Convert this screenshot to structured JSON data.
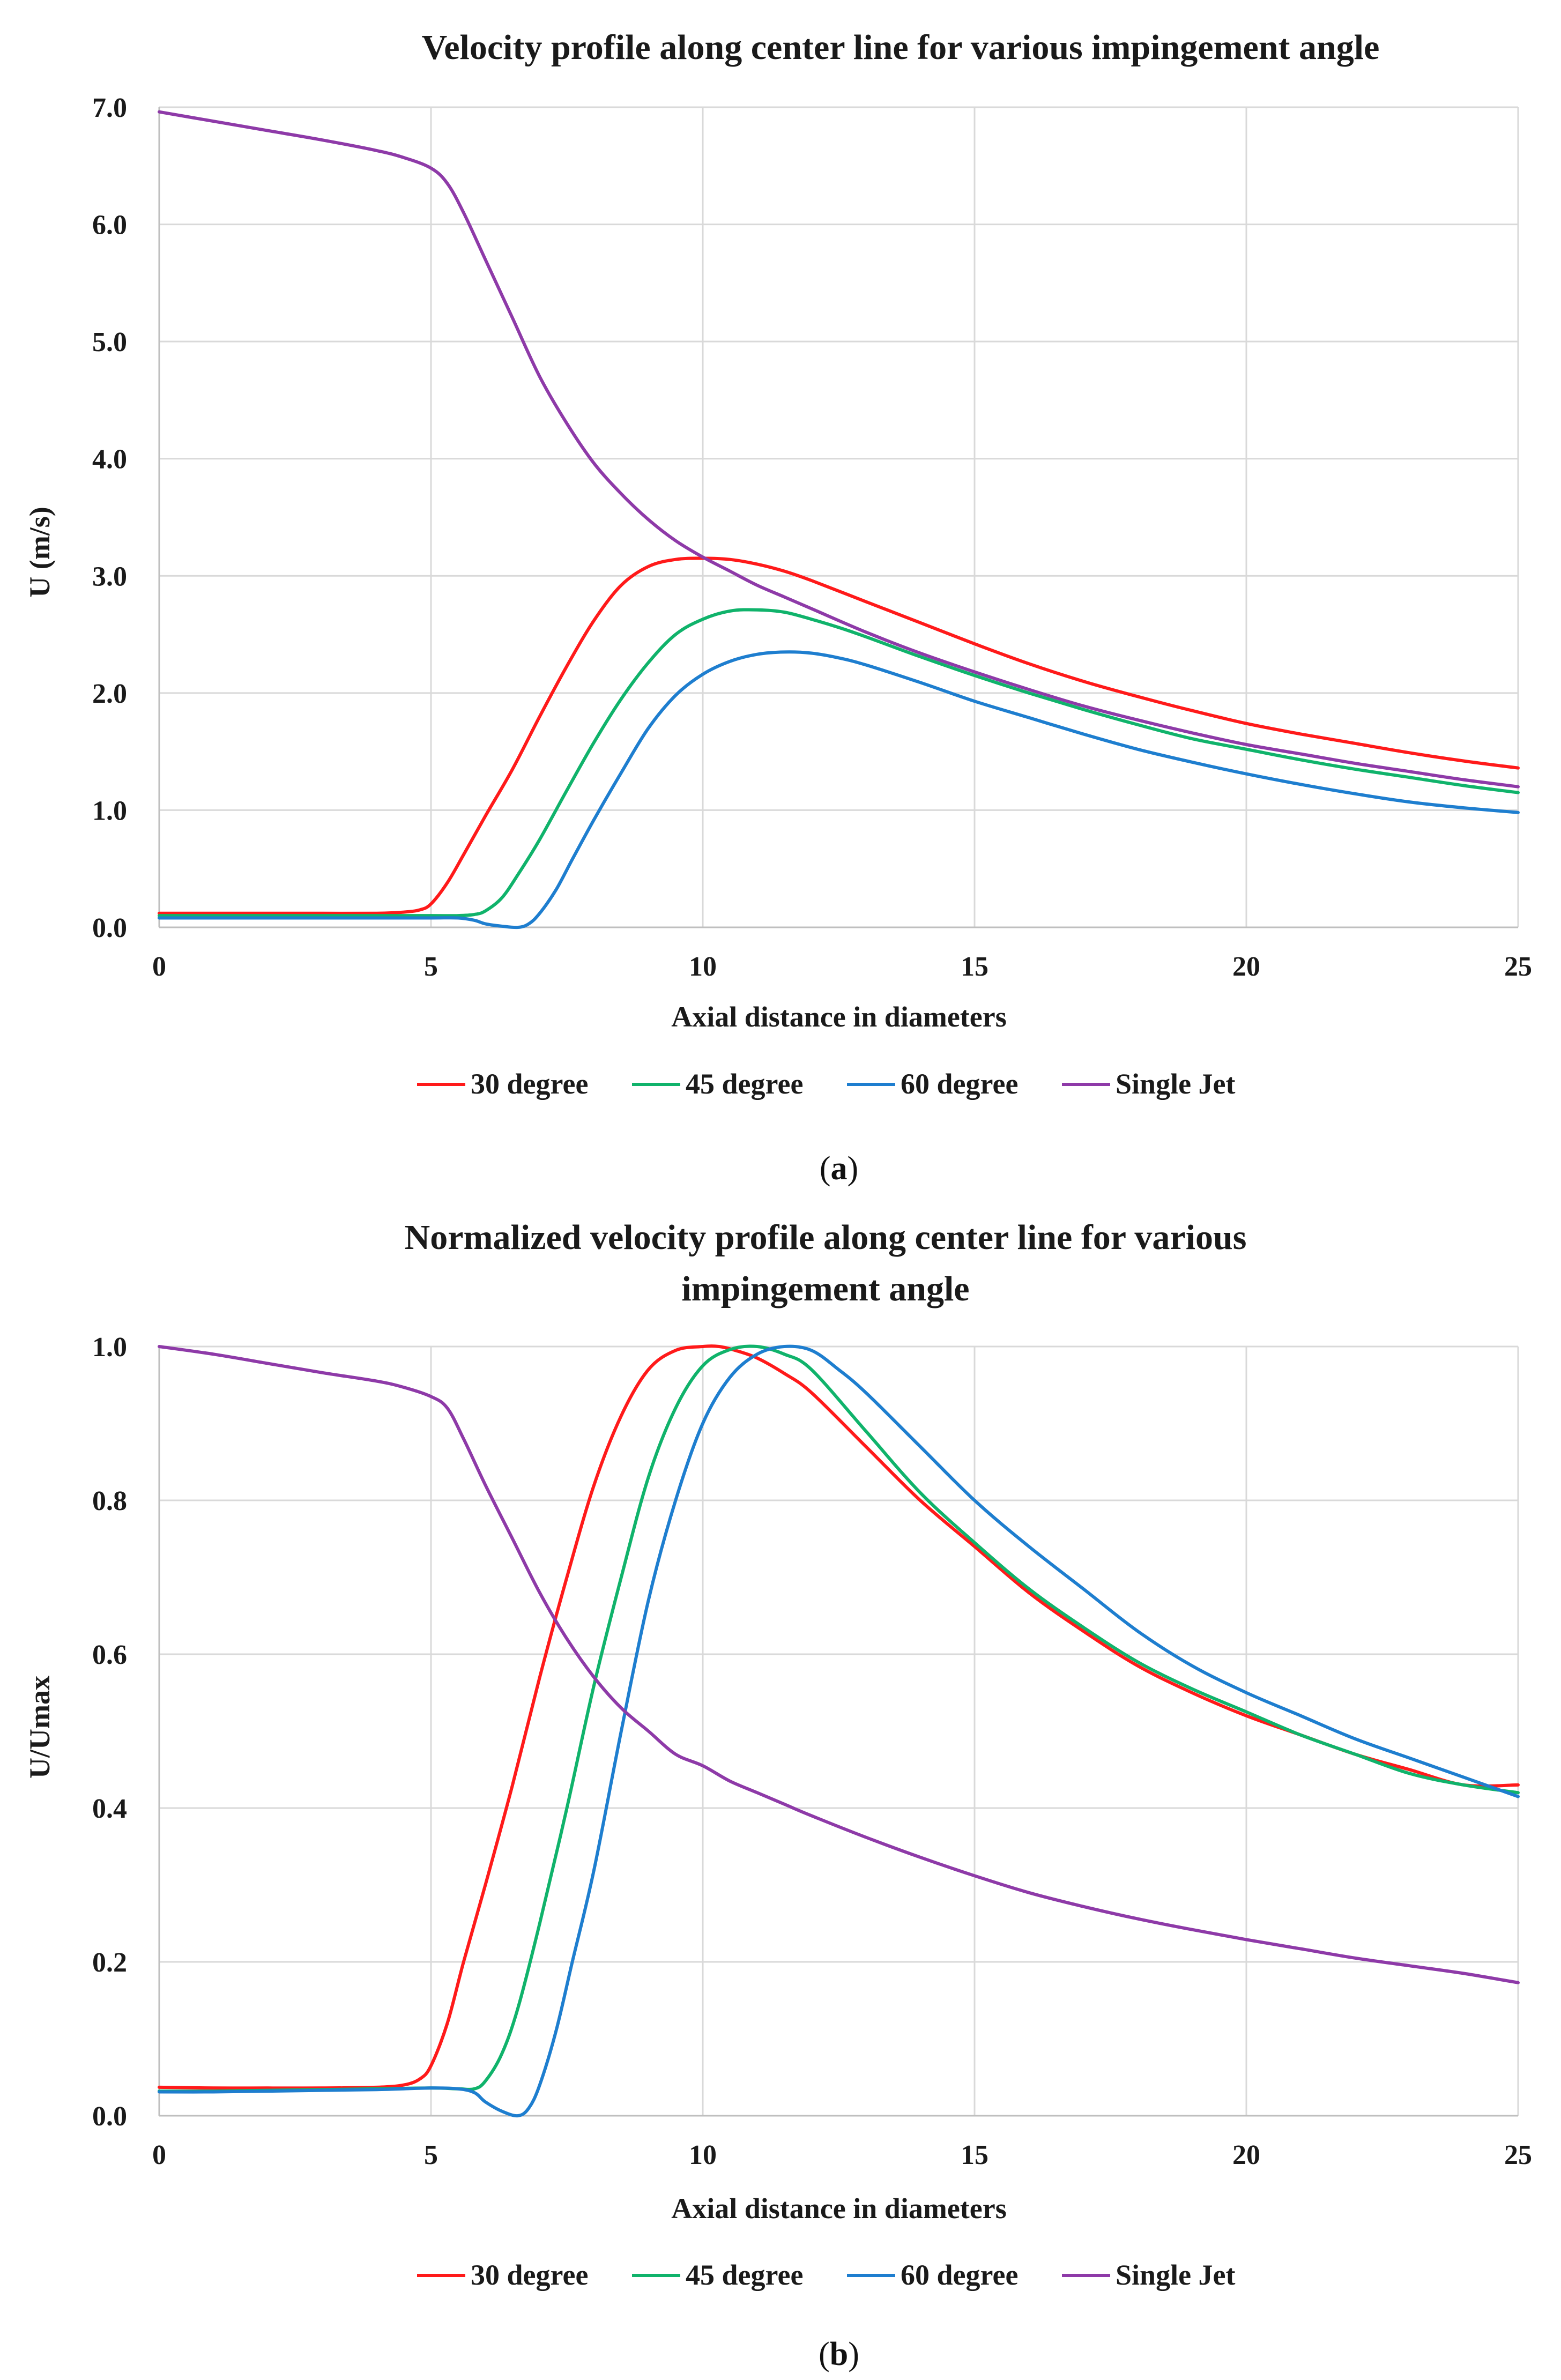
{
  "colors": {
    "s30": "#ff1a1a",
    "s45": "#10b36b",
    "s60": "#1e7ecf",
    "single": "#8e3aa8"
  },
  "chart_data": [
    {
      "type": "line",
      "title": "Velocity profile along center line for various impingement angle",
      "xlabel": "Axial distance in diameters",
      "ylabel": "U (m/s)",
      "xlim": [
        0,
        25
      ],
      "ylim": [
        0,
        7
      ],
      "xticks": [
        0,
        5,
        10,
        15,
        20,
        25
      ],
      "xtick_labels": [
        "0",
        "5",
        "10",
        "15",
        "20",
        "25"
      ],
      "yticks": [
        0,
        1,
        2,
        3,
        4,
        5,
        6,
        7
      ],
      "ytick_labels": [
        "0.0",
        "1.0",
        "2.0",
        "3.0",
        "4.0",
        "5.0",
        "6.0",
        "7.0"
      ],
      "caption": "a",
      "series": [
        {
          "name": "30 degree",
          "color_key": "s30",
          "x": [
            0,
            1,
            2,
            3,
            4,
            4.5,
            4.8,
            5,
            5.3,
            5.6,
            6,
            6.5,
            7,
            7.5,
            8,
            8.5,
            9,
            9.5,
            10,
            10.5,
            11,
            11.5,
            12,
            13,
            14,
            15,
            16,
            17,
            18,
            19,
            20,
            21,
            22,
            23,
            24,
            25
          ],
          "y": [
            0.12,
            0.12,
            0.12,
            0.12,
            0.12,
            0.13,
            0.15,
            0.2,
            0.38,
            0.62,
            0.95,
            1.35,
            1.8,
            2.23,
            2.62,
            2.92,
            3.08,
            3.14,
            3.15,
            3.14,
            3.1,
            3.04,
            2.96,
            2.78,
            2.6,
            2.42,
            2.25,
            2.1,
            1.97,
            1.85,
            1.74,
            1.65,
            1.57,
            1.49,
            1.42,
            1.36
          ]
        },
        {
          "name": "45 degree",
          "color_key": "s45",
          "x": [
            0,
            1,
            2,
            3,
            4,
            5,
            5.5,
            5.8,
            6,
            6.3,
            6.6,
            7,
            7.5,
            8,
            8.5,
            9,
            9.5,
            10,
            10.5,
            11,
            11.5,
            12,
            12.5,
            13,
            14,
            15,
            16,
            17,
            18,
            19,
            20,
            21,
            22,
            23,
            24,
            25
          ],
          "y": [
            0.1,
            0.1,
            0.1,
            0.1,
            0.1,
            0.1,
            0.1,
            0.11,
            0.14,
            0.25,
            0.45,
            0.75,
            1.17,
            1.58,
            1.95,
            2.26,
            2.5,
            2.63,
            2.7,
            2.71,
            2.69,
            2.63,
            2.56,
            2.48,
            2.31,
            2.15,
            2.0,
            1.86,
            1.73,
            1.61,
            1.52,
            1.43,
            1.35,
            1.28,
            1.21,
            1.15
          ]
        },
        {
          "name": "60 degree",
          "color_key": "s60",
          "x": [
            0,
            1,
            2,
            3,
            4,
            5,
            5.5,
            5.8,
            6,
            6.3,
            6.6,
            6.8,
            7,
            7.3,
            7.6,
            8,
            8.5,
            9,
            9.5,
            10,
            10.5,
            11,
            11.5,
            12,
            12.5,
            13,
            14,
            15,
            16,
            17,
            18,
            19,
            20,
            21,
            22,
            23,
            24,
            25
          ],
          "y": [
            0.08,
            0.08,
            0.08,
            0.08,
            0.08,
            0.08,
            0.08,
            0.06,
            0.03,
            0.01,
            0.0,
            0.03,
            0.12,
            0.32,
            0.58,
            0.92,
            1.32,
            1.7,
            1.98,
            2.16,
            2.27,
            2.33,
            2.35,
            2.34,
            2.3,
            2.24,
            2.09,
            1.93,
            1.79,
            1.65,
            1.52,
            1.41,
            1.31,
            1.22,
            1.14,
            1.07,
            1.02,
            0.98
          ]
        },
        {
          "name": "Single Jet",
          "color_key": "single",
          "x": [
            0,
            1,
            2,
            3,
            4,
            4.5,
            5,
            5.3,
            5.6,
            6,
            6.5,
            7,
            7.5,
            8,
            8.5,
            9,
            9.5,
            10,
            10.5,
            11,
            11.5,
            12,
            13,
            14,
            15,
            16,
            17,
            18,
            19,
            20,
            21,
            22,
            23,
            24,
            25
          ],
          "y": [
            6.96,
            6.88,
            6.8,
            6.72,
            6.63,
            6.57,
            6.48,
            6.35,
            6.1,
            5.7,
            5.2,
            4.7,
            4.3,
            3.96,
            3.7,
            3.48,
            3.3,
            3.16,
            3.04,
            2.92,
            2.82,
            2.72,
            2.52,
            2.34,
            2.18,
            2.03,
            1.89,
            1.77,
            1.66,
            1.56,
            1.48,
            1.4,
            1.33,
            1.26,
            1.2
          ]
        }
      ]
    },
    {
      "type": "line",
      "title": "Normalized velocity profile along center line for various impingement angle",
      "title_lines": [
        "Normalized velocity profile along center line for various",
        "impingement angle"
      ],
      "xlabel": "Axial distance in diameters",
      "ylabel": "U/Umax",
      "xlim": [
        0,
        25
      ],
      "ylim": [
        0,
        1
      ],
      "xticks": [
        0,
        5,
        10,
        15,
        20,
        25
      ],
      "xtick_labels": [
        "0",
        "5",
        "10",
        "15",
        "20",
        "25"
      ],
      "yticks": [
        0,
        0.2,
        0.4,
        0.6,
        0.8,
        1.0
      ],
      "ytick_labels": [
        "0.0",
        "0.2",
        "0.4",
        "0.6",
        "0.8",
        "1.0"
      ],
      "caption": "b",
      "series": [
        {
          "name": "30 degree",
          "color_key": "s30",
          "x": [
            0,
            1,
            2,
            3,
            4,
            4.5,
            4.8,
            5,
            5.3,
            5.6,
            6,
            6.5,
            7,
            7.5,
            8,
            8.5,
            9,
            9.5,
            10,
            10.3,
            10.6,
            11,
            11.5,
            12,
            13,
            14,
            15,
            16,
            17,
            18,
            19,
            20,
            21,
            22,
            23,
            24,
            25
          ],
          "y": [
            0.037,
            0.036,
            0.036,
            0.036,
            0.037,
            0.04,
            0.048,
            0.065,
            0.12,
            0.2,
            0.3,
            0.43,
            0.57,
            0.7,
            0.82,
            0.91,
            0.97,
            0.995,
            1.0,
            1.0,
            0.995,
            0.985,
            0.965,
            0.94,
            0.87,
            0.8,
            0.74,
            0.68,
            0.63,
            0.585,
            0.55,
            0.52,
            0.495,
            0.47,
            0.45,
            0.43,
            0.43
          ]
        },
        {
          "name": "45 degree",
          "color_key": "s45",
          "x": [
            0,
            1,
            2,
            3,
            4,
            5,
            5.5,
            5.8,
            6,
            6.3,
            6.6,
            7,
            7.5,
            8,
            8.5,
            9,
            9.5,
            10,
            10.5,
            11,
            11.5,
            12,
            13,
            14,
            15,
            16,
            17,
            18,
            19,
            20,
            21,
            22,
            23,
            24,
            25
          ],
          "y": [
            0.032,
            0.032,
            0.033,
            0.034,
            0.035,
            0.036,
            0.035,
            0.035,
            0.045,
            0.08,
            0.14,
            0.25,
            0.4,
            0.56,
            0.7,
            0.83,
            0.92,
            0.975,
            0.996,
            1.0,
            0.99,
            0.97,
            0.89,
            0.81,
            0.745,
            0.685,
            0.635,
            0.59,
            0.555,
            0.525,
            0.495,
            0.47,
            0.445,
            0.43,
            0.42
          ]
        },
        {
          "name": "60 degree",
          "color_key": "s60",
          "x": [
            0,
            1,
            2,
            3,
            4,
            5,
            5.5,
            5.8,
            6,
            6.3,
            6.6,
            6.8,
            7,
            7.3,
            7.6,
            8,
            8.5,
            9,
            9.5,
            10,
            10.5,
            11,
            11.5,
            12,
            12.5,
            13,
            14,
            15,
            16,
            17,
            18,
            19,
            20,
            21,
            22,
            23,
            24,
            25
          ],
          "y": [
            0.031,
            0.031,
            0.032,
            0.033,
            0.034,
            0.036,
            0.035,
            0.03,
            0.018,
            0.006,
            0.0,
            0.01,
            0.04,
            0.11,
            0.2,
            0.32,
            0.5,
            0.67,
            0.8,
            0.9,
            0.96,
            0.99,
            1.0,
            0.995,
            0.97,
            0.94,
            0.87,
            0.8,
            0.74,
            0.685,
            0.63,
            0.585,
            0.55,
            0.52,
            0.49,
            0.465,
            0.44,
            0.415
          ]
        },
        {
          "name": "Single Jet",
          "color_key": "single",
          "x": [
            0,
            1,
            2,
            3,
            4,
            4.5,
            5,
            5.3,
            5.6,
            6,
            6.5,
            7,
            7.5,
            8,
            8.5,
            9,
            9.5,
            10,
            10.5,
            11,
            11.5,
            12,
            13,
            14,
            15,
            16,
            17,
            18,
            19,
            20,
            21,
            22,
            23,
            24,
            25
          ],
          "y": [
            1.0,
            0.99,
            0.978,
            0.966,
            0.955,
            0.947,
            0.935,
            0.92,
            0.88,
            0.82,
            0.75,
            0.68,
            0.62,
            0.57,
            0.53,
            0.5,
            0.47,
            0.455,
            0.435,
            0.42,
            0.405,
            0.39,
            0.362,
            0.336,
            0.312,
            0.29,
            0.272,
            0.256,
            0.242,
            0.229,
            0.217,
            0.205,
            0.195,
            0.185,
            0.173
          ]
        }
      ]
    }
  ]
}
